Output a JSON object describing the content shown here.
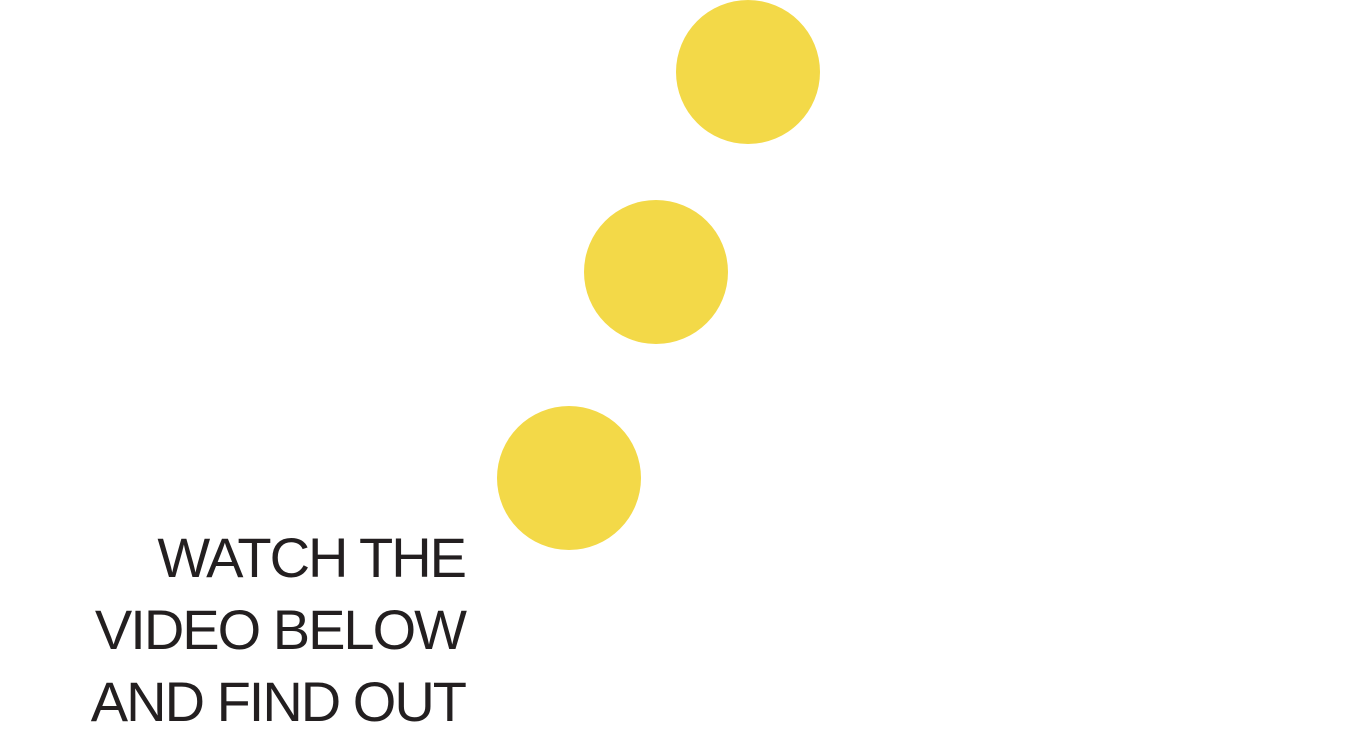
{
  "theme": {
    "accent": "#F3D948",
    "text": "#231F20",
    "background": "#FFFFFF"
  },
  "dots": [
    {
      "name": "dot-1"
    },
    {
      "name": "dot-2"
    },
    {
      "name": "dot-3"
    }
  ],
  "cta": {
    "line1": "WATCH THE",
    "line2": "VIDEO BELOW",
    "line3": "AND FIND OUT"
  }
}
